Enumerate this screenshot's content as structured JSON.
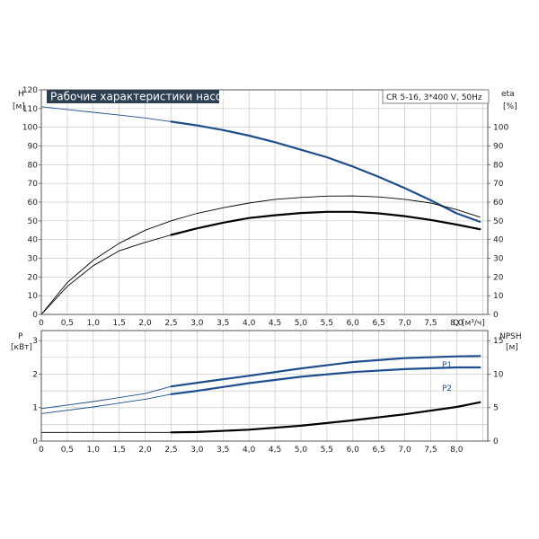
{
  "chart_data": [
    {
      "type": "line",
      "title": "Рабочие характеристики насоса",
      "subtitle": "CR 5-16, 3*400 V, 50Hz",
      "x_label": "Q [м³/ч]",
      "left_axis": {
        "label_top": "H",
        "label_unit": "[м]",
        "ticks": [
          "0",
          "10",
          "20",
          "30",
          "40",
          "50",
          "60",
          "70",
          "80",
          "90",
          "100",
          "110",
          "120"
        ],
        "range": [
          0,
          120
        ]
      },
      "right_axis": {
        "label_top": "eta",
        "label_unit": "[%]",
        "ticks": [
          "0",
          "10",
          "20",
          "30",
          "40",
          "50",
          "60",
          "70",
          "80",
          "90",
          "100"
        ],
        "range": [
          0,
          120
        ]
      },
      "x_ticks": [
        "0",
        "0,5",
        "1,0",
        "1,5",
        "2,0",
        "2,5",
        "3,0",
        "3,5",
        "4,0",
        "4,5",
        "5,0",
        "5,5",
        "6,0",
        "6,5",
        "7,0",
        "7,5",
        "8,0"
      ],
      "x_range": [
        0,
        8.6
      ],
      "grid": true,
      "series": [
        {
          "axis": "H",
          "color": "#1f4e8c",
          "dashed_until": 2.5,
          "points": [
            [
              0,
              111
            ],
            [
              0.5,
              109.5
            ],
            [
              1,
              108
            ],
            [
              1.5,
              106.5
            ],
            [
              2,
              105
            ],
            [
              2.5,
              103
            ],
            [
              3,
              101
            ],
            [
              3.5,
              98.5
            ],
            [
              4,
              95.5
            ],
            [
              4.5,
              92
            ],
            [
              5,
              88
            ],
            [
              5.5,
              84
            ],
            [
              6,
              79
            ],
            [
              6.5,
              73.5
            ],
            [
              7,
              67.5
            ],
            [
              7.5,
              61
            ],
            [
              8,
              54
            ],
            [
              8.45,
              49.5
            ]
          ]
        },
        {
          "axis": "eta",
          "color": "#000000",
          "dashed_until": 0,
          "points": [
            [
              0,
              0
            ],
            [
              0.5,
              17
            ],
            [
              1,
              29
            ],
            [
              1.5,
              38
            ],
            [
              2,
              45
            ],
            [
              2.5,
              50
            ],
            [
              3,
              54
            ],
            [
              3.5,
              57
            ],
            [
              4,
              59.5
            ],
            [
              4.5,
              61.5
            ],
            [
              5,
              62.5
            ],
            [
              5.5,
              63.2
            ],
            [
              6,
              63.3
            ],
            [
              6.5,
              62.8
            ],
            [
              7,
              61.5
            ],
            [
              7.5,
              59.5
            ],
            [
              8,
              56
            ],
            [
              8.45,
              52
            ]
          ]
        },
        {
          "axis": "eta",
          "color": "#000000",
          "dashed_until": 2.5,
          "points": [
            [
              0,
              0
            ],
            [
              0.5,
              15
            ],
            [
              1,
              26
            ],
            [
              1.5,
              34
            ],
            [
              2,
              38.5
            ],
            [
              2.5,
              42.5
            ],
            [
              3,
              46
            ],
            [
              3.5,
              49
            ],
            [
              4,
              51.5
            ],
            [
              4.5,
              53
            ],
            [
              5,
              54.2
            ],
            [
              5.5,
              54.8
            ],
            [
              6,
              54.8
            ],
            [
              6.5,
              54
            ],
            [
              7,
              52.5
            ],
            [
              7.5,
              50.5
            ],
            [
              8,
              48
            ],
            [
              8.45,
              45.5
            ]
          ]
        }
      ]
    },
    {
      "type": "line",
      "x_ticks": [
        "0",
        "0,5",
        "1,0",
        "1,5",
        "2,0",
        "2,5",
        "3,0",
        "3,5",
        "4,0",
        "4,5",
        "5,0",
        "5,5",
        "6,0",
        "6,5",
        "7,0",
        "7,5",
        "8,0"
      ],
      "x_range": [
        0,
        8.6
      ],
      "left_axis": {
        "label_top": "P",
        "label_unit": "[кВт]",
        "ticks": [
          "0",
          "1",
          "2",
          "3"
        ],
        "range": [
          0,
          3.3
        ]
      },
      "right_axis": {
        "label_top": "NPSH",
        "label_unit": "[м]",
        "ticks": [
          "0",
          "5",
          "10",
          "15"
        ],
        "range": [
          0,
          16.5
        ]
      },
      "grid": true,
      "series": [
        {
          "name": "P1",
          "axis": "P",
          "color": "#1f4e8c",
          "dashed_until": 2.5,
          "points": [
            [
              0,
              0.97
            ],
            [
              1,
              1.18
            ],
            [
              2,
              1.42
            ],
            [
              2.5,
              1.63
            ],
            [
              3,
              1.74
            ],
            [
              4,
              1.95
            ],
            [
              5,
              2.17
            ],
            [
              6,
              2.36
            ],
            [
              7,
              2.48
            ],
            [
              8,
              2.53
            ],
            [
              8.45,
              2.54
            ]
          ]
        },
        {
          "name": "P2",
          "axis": "P",
          "color": "#1f4e8c",
          "dashed_until": 2.5,
          "points": [
            [
              0,
              0.82
            ],
            [
              1,
              1.02
            ],
            [
              2,
              1.25
            ],
            [
              2.5,
              1.4
            ],
            [
              3,
              1.5
            ],
            [
              4,
              1.73
            ],
            [
              5,
              1.92
            ],
            [
              6,
              2.06
            ],
            [
              7,
              2.15
            ],
            [
              8,
              2.2
            ],
            [
              8.45,
              2.2
            ]
          ]
        },
        {
          "axis": "NPSH",
          "color": "#000000",
          "dashed_until": 2.5,
          "points": [
            [
              0,
              1.3
            ],
            [
              1,
              1.3
            ],
            [
              2,
              1.3
            ],
            [
              2.5,
              1.3
            ],
            [
              3,
              1.35
            ],
            [
              4,
              1.7
            ],
            [
              5,
              2.3
            ],
            [
              6,
              3.1
            ],
            [
              7,
              4.0
            ],
            [
              8,
              5.1
            ],
            [
              8.45,
              5.8
            ]
          ]
        }
      ]
    }
  ]
}
